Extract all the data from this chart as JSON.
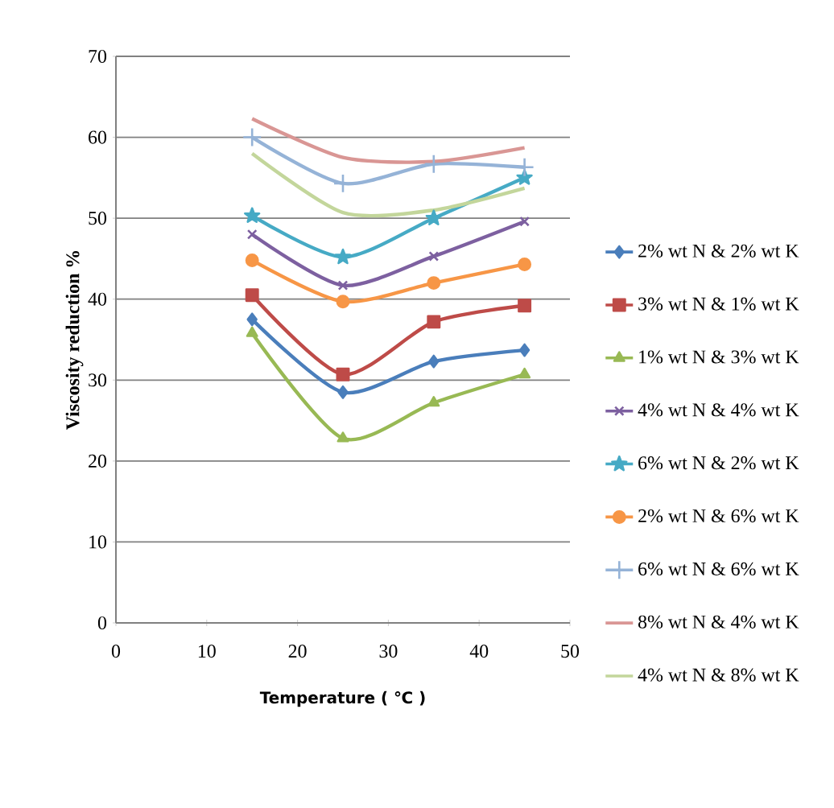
{
  "chart_data": {
    "type": "line",
    "xlabel": "Temperature ( ℃ )",
    "ylabel": "Viscosity reduction  %",
    "x": [
      15,
      25,
      35,
      45
    ],
    "series": [
      {
        "name": "2% wt N & 2% wt K",
        "color": "#4a7ebb",
        "marker": "diamond",
        "values": [
          37.5,
          28.5,
          32.3,
          33.7
        ]
      },
      {
        "name": "3% wt N & 1% wt K",
        "color": "#be4b48",
        "marker": "square",
        "values": [
          40.5,
          30.7,
          37.2,
          39.2
        ]
      },
      {
        "name": "1% wt N & 3% wt K",
        "color": "#98b954",
        "marker": "triangle",
        "values": [
          35.8,
          22.8,
          27.2,
          30.7
        ]
      },
      {
        "name": "4% wt N & 4% wt K",
        "color": "#7d60a0",
        "marker": "cross",
        "values": [
          48.0,
          41.7,
          45.3,
          49.6
        ]
      },
      {
        "name": "6% wt N & 2% wt K",
        "color": "#46aac5",
        "marker": "star",
        "values": [
          50.3,
          45.2,
          50.0,
          55.0
        ]
      },
      {
        "name": "2% wt N & 6% wt K",
        "color": "#f79646",
        "marker": "circle",
        "values": [
          44.8,
          39.7,
          42.0,
          44.3
        ]
      },
      {
        "name": "6% wt N & 6% wt K",
        "color": "#95b3d7",
        "marker": "plus",
        "values": [
          60.0,
          54.3,
          56.7,
          56.3
        ]
      },
      {
        "name": "8% wt N & 4% wt K",
        "color": "#d99694",
        "marker": "none",
        "values": [
          62.3,
          57.5,
          57.0,
          58.7
        ]
      },
      {
        "name": "4% wt N & 8% wt K",
        "color": "#c3d69b",
        "marker": "none",
        "values": [
          58.0,
          50.7,
          51.0,
          53.7
        ]
      }
    ],
    "xlim": [
      0,
      50
    ],
    "ylim": [
      0,
      70
    ],
    "xticks": [
      0,
      10,
      20,
      30,
      40,
      50
    ],
    "yticks": [
      0,
      10,
      20,
      30,
      40,
      50,
      60,
      70
    ],
    "grid": "y",
    "legend": "right"
  }
}
